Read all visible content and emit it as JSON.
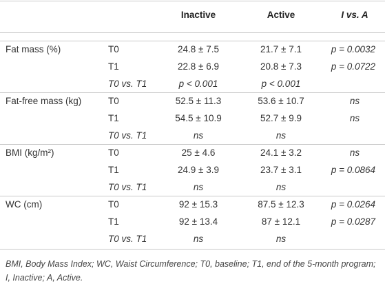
{
  "table": {
    "header": [
      "Inactive",
      "Active",
      "I vs. A"
    ],
    "groups": [
      {
        "label": "Fat mass (%)",
        "rows": [
          [
            "T0",
            "24.8 ± 7.5",
            "21.7 ± 7.1",
            "p = 0.0032"
          ],
          [
            "T1",
            "22.8 ± 6.9",
            "20.8 ± 7.3",
            "p = 0.0722"
          ],
          [
            "T0 vs. T1",
            "p < 0.001",
            "p < 0.001"
          ]
        ]
      },
      {
        "label": "Fat-free mass (kg)",
        "rows": [
          [
            "T0",
            "52.5 ± 11.3",
            "53.6 ± 10.7",
            "ns"
          ],
          [
            "T1",
            "54.5 ± 10.9",
            "52.7 ± 9.9",
            "ns"
          ],
          [
            "T0 vs. T1",
            "ns",
            "ns"
          ]
        ]
      },
      {
        "label": "BMI (kg/m²)",
        "rows": [
          [
            "T0",
            "25 ± 4.6",
            "24.1 ± 3.2",
            "ns"
          ],
          [
            "T1",
            "24.9 ± 3.9",
            "23.7 ± 3.1",
            "p = 0.0864"
          ],
          [
            "T0 vs. T1",
            "ns",
            "ns"
          ]
        ]
      },
      {
        "label": "WC (cm)",
        "rows": [
          [
            "T0",
            "92 ± 15.3",
            "87.5 ± 12.3",
            "p = 0.0264"
          ],
          [
            "T1",
            "92 ± 13.4",
            "87 ± 12.1",
            "p = 0.0287"
          ],
          [
            "T0 vs. T1",
            "ns",
            "ns"
          ]
        ]
      }
    ],
    "footnote": "BMI, Body Mass Index; WC, Waist Circumference; T0, baseline; T1, end of the 5-month program; I, Inactive; A, Active."
  }
}
